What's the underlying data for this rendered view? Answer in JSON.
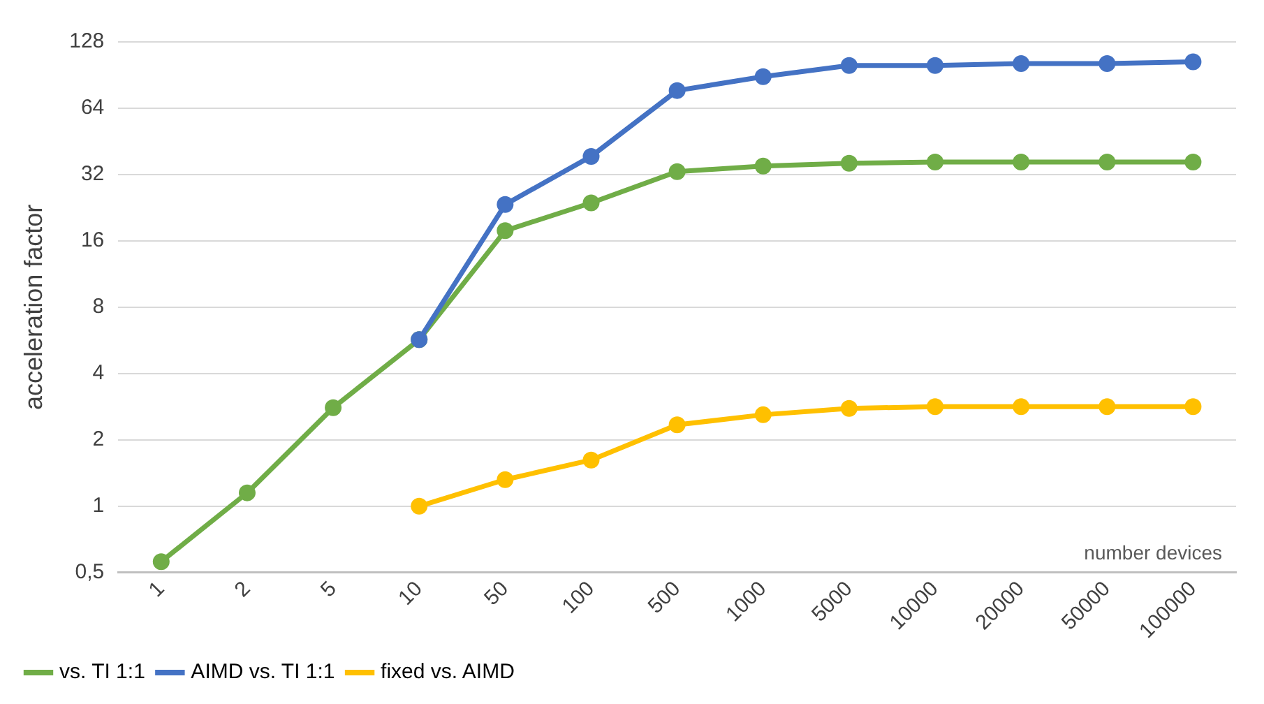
{
  "chart_data": {
    "type": "line",
    "ylabel": "acceleration factor",
    "xlabel": "number devices",
    "categories": [
      "1",
      "2",
      "5",
      "10",
      "50",
      "100",
      "500",
      "1000",
      "5000",
      "10000",
      "20000",
      "50000",
      "100000"
    ],
    "series": [
      {
        "name": "vs. TI 1:1",
        "color": "#70ad47",
        "values": [
          0.56,
          1.15,
          2.8,
          5.7,
          17.8,
          23.8,
          33,
          35,
          36,
          36.5,
          36.5,
          36.5,
          36.5
        ]
      },
      {
        "name": "AIMD vs. TI 1:1",
        "color": "#4472c4",
        "values": [
          null,
          null,
          null,
          5.7,
          23.4,
          38.7,
          77,
          89,
          100,
          100,
          102,
          102,
          104
        ]
      },
      {
        "name": "fixed vs. AIMD",
        "color": "#ffc000",
        "values": [
          null,
          null,
          null,
          1,
          1.32,
          1.62,
          2.34,
          2.6,
          2.78,
          2.83,
          2.83,
          2.83,
          2.83
        ]
      }
    ],
    "log": "y",
    "ylim": [
      0.5,
      128
    ],
    "yticks": [
      {
        "value": 0.5,
        "label": "0,5"
      },
      1,
      2,
      4,
      8,
      16,
      32,
      64,
      128
    ],
    "grid": "y",
    "legend": "bottom left",
    "marker": "circle",
    "line_style": "solid"
  }
}
